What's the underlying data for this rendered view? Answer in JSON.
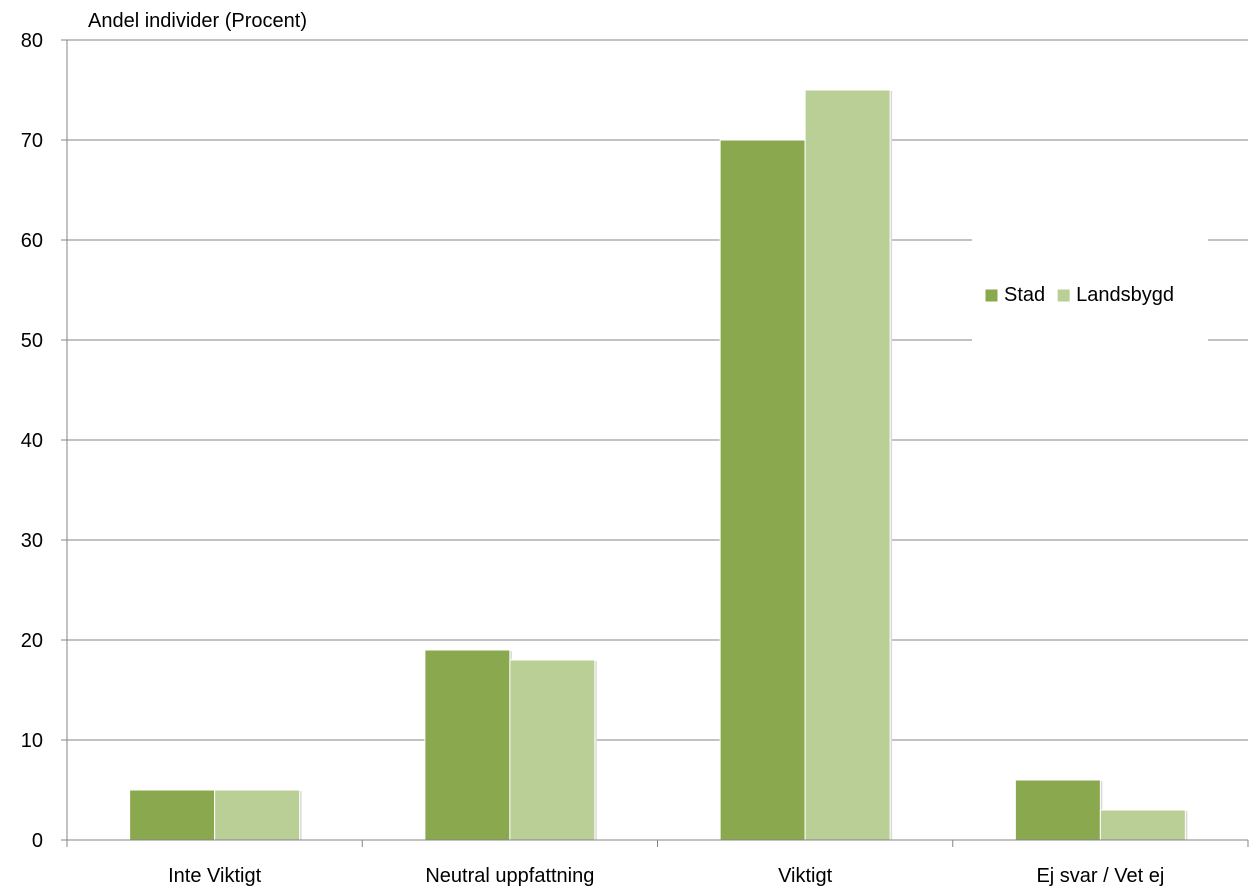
{
  "chart_data": {
    "type": "bar",
    "title": "",
    "ylabel": "Andel individer (Procent)",
    "xlabel": "",
    "categories": [
      "Inte Viktigt",
      "Neutral uppfattning",
      "Viktigt",
      "Ej svar / Vet ej"
    ],
    "series": [
      {
        "name": "Stad",
        "values": [
          5,
          19,
          70,
          6
        ],
        "color": "#8aa84e"
      },
      {
        "name": "Landsbygd",
        "values": [
          5,
          18,
          75,
          3
        ],
        "color": "#b9cf95"
      }
    ],
    "ylim": [
      0,
      80
    ],
    "yticks": [
      0,
      10,
      20,
      30,
      40,
      50,
      60,
      70,
      80
    ],
    "grid": true,
    "legend_position": "right"
  }
}
